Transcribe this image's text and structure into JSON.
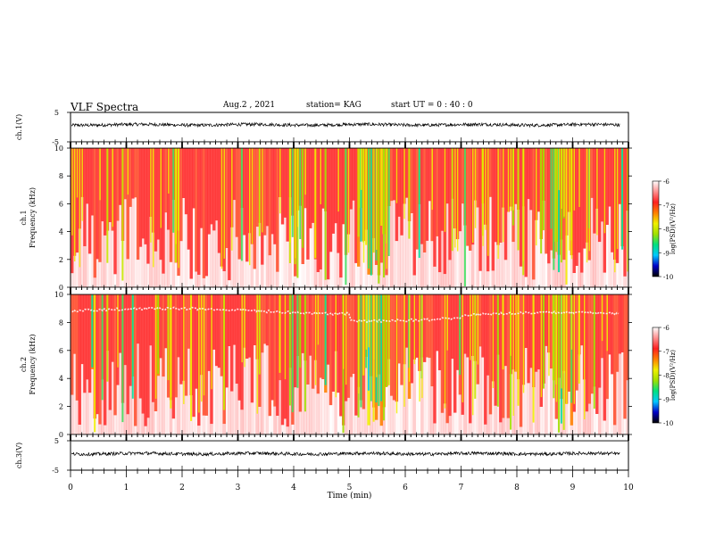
{
  "header": {
    "title": "VLF Spectra",
    "date": "Aug.2  , 2021",
    "station": "station= KAG",
    "start_ut": "start  UT =   0 : 40 : 0"
  },
  "chart_data": [
    {
      "type": "line",
      "panel": "ch1-waveform",
      "ylabel": "ch.1(V)",
      "ylim": [
        -5,
        5
      ],
      "yticks": [
        "5",
        "-5"
      ],
      "xlim": [
        0,
        10
      ],
      "series": [
        {
          "level": 0.8,
          "noise": 0.25
        }
      ]
    },
    {
      "type": "heatmap",
      "panel": "ch1-spectrogram",
      "ylabel_line1": "ch.1",
      "ylabel_line2": "Frequency (kHz)",
      "ylim": [
        0,
        10
      ],
      "yticks": [
        "0",
        "2",
        "4",
        "6",
        "8",
        "10"
      ],
      "xlim": [
        0,
        10
      ],
      "colorbar": {
        "label": "log(PSD)(V²/Hz)",
        "range": [
          -10,
          -6
        ],
        "ticks": [
          "-6",
          "-7",
          "-8",
          "-9",
          "-10"
        ],
        "colors": [
          "#000000",
          "#0000c8",
          "#00c8ff",
          "#00e080",
          "#a0e000",
          "#f0f000",
          "#ff8000",
          "#ff2020",
          "#ff9090",
          "#ffffff"
        ]
      }
    },
    {
      "type": "heatmap",
      "panel": "ch2-spectrogram",
      "ylabel_line1": "ch.2",
      "ylabel_line2": "Frequency (kHz)",
      "ylim": [
        0,
        10
      ],
      "yticks": [
        "0",
        "2",
        "4",
        "6",
        "8",
        "10"
      ],
      "xlim": [
        0,
        10
      ],
      "colorbar": {
        "label": "log(PSD)(V²/Hz)",
        "range": [
          -10,
          -6
        ],
        "ticks": [
          "-6",
          "-7",
          "-8",
          "-9",
          "-10"
        ]
      },
      "white_band_khz": 8.8
    },
    {
      "type": "line",
      "panel": "ch3-waveform",
      "ylabel": "ch.3(V)",
      "ylim": [
        -5,
        5
      ],
      "yticks": [
        "5",
        "-5"
      ],
      "xlim": [
        0,
        10
      ],
      "series": [
        {
          "level": 0.6,
          "noise": 0.25
        }
      ]
    }
  ],
  "xaxis": {
    "label": "Time (min)",
    "ticks": [
      "0",
      "1",
      "2",
      "3",
      "4",
      "5",
      "6",
      "7",
      "8",
      "9",
      "10"
    ]
  }
}
